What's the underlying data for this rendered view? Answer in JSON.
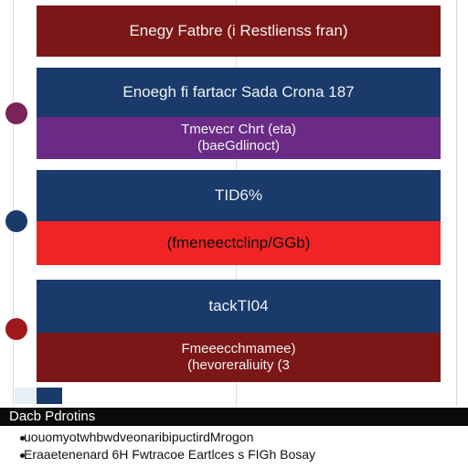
{
  "chart_data": {
    "type": "bar",
    "categories": [
      "Enegy Fatbre (i Restlienss fran)",
      "Enoegh fi fartacr Sada Crona 187",
      "Tmevecr Chrt (eta) (baeGdlinoct)",
      "TID6%",
      "(fmeneectclinp/GGb)",
      "tackTI04",
      "Fmeeecchmamee) (hevoreraliuity (3"
    ],
    "series_colors": [
      "#7b1717",
      "#1a3a6b",
      "#6a2a86",
      "#1a3a6b",
      "#f02424",
      "#1a3a6b",
      "#7b1717"
    ],
    "dot_colors": [
      "#7a2358",
      "#1a3a6b",
      "#9e1a1a"
    ],
    "legend": {
      "title": "Dacb Pdrotins",
      "items": [
        "uouomyotwhbwdveonaribipuctirdMrogon",
        "Eraaetenenard 6H Fwtracoe Eartlces s FIGh Bosay"
      ]
    }
  },
  "labels": {
    "b1": "Enegy Fatbre (i Restlienss fran)",
    "b2": "Enoegh fi fartacr Sada Crona 187",
    "b3a": "Tmevecr Chrt (eta)",
    "b3b": "(baeGdlinoct)",
    "b4": "TID6%",
    "b5": "(fmeneectclinp/GGb)",
    "b6": "tackTI04",
    "b7a": "Fmeeecchmamee)",
    "b7b": "(hevoreraliuity (3"
  }
}
